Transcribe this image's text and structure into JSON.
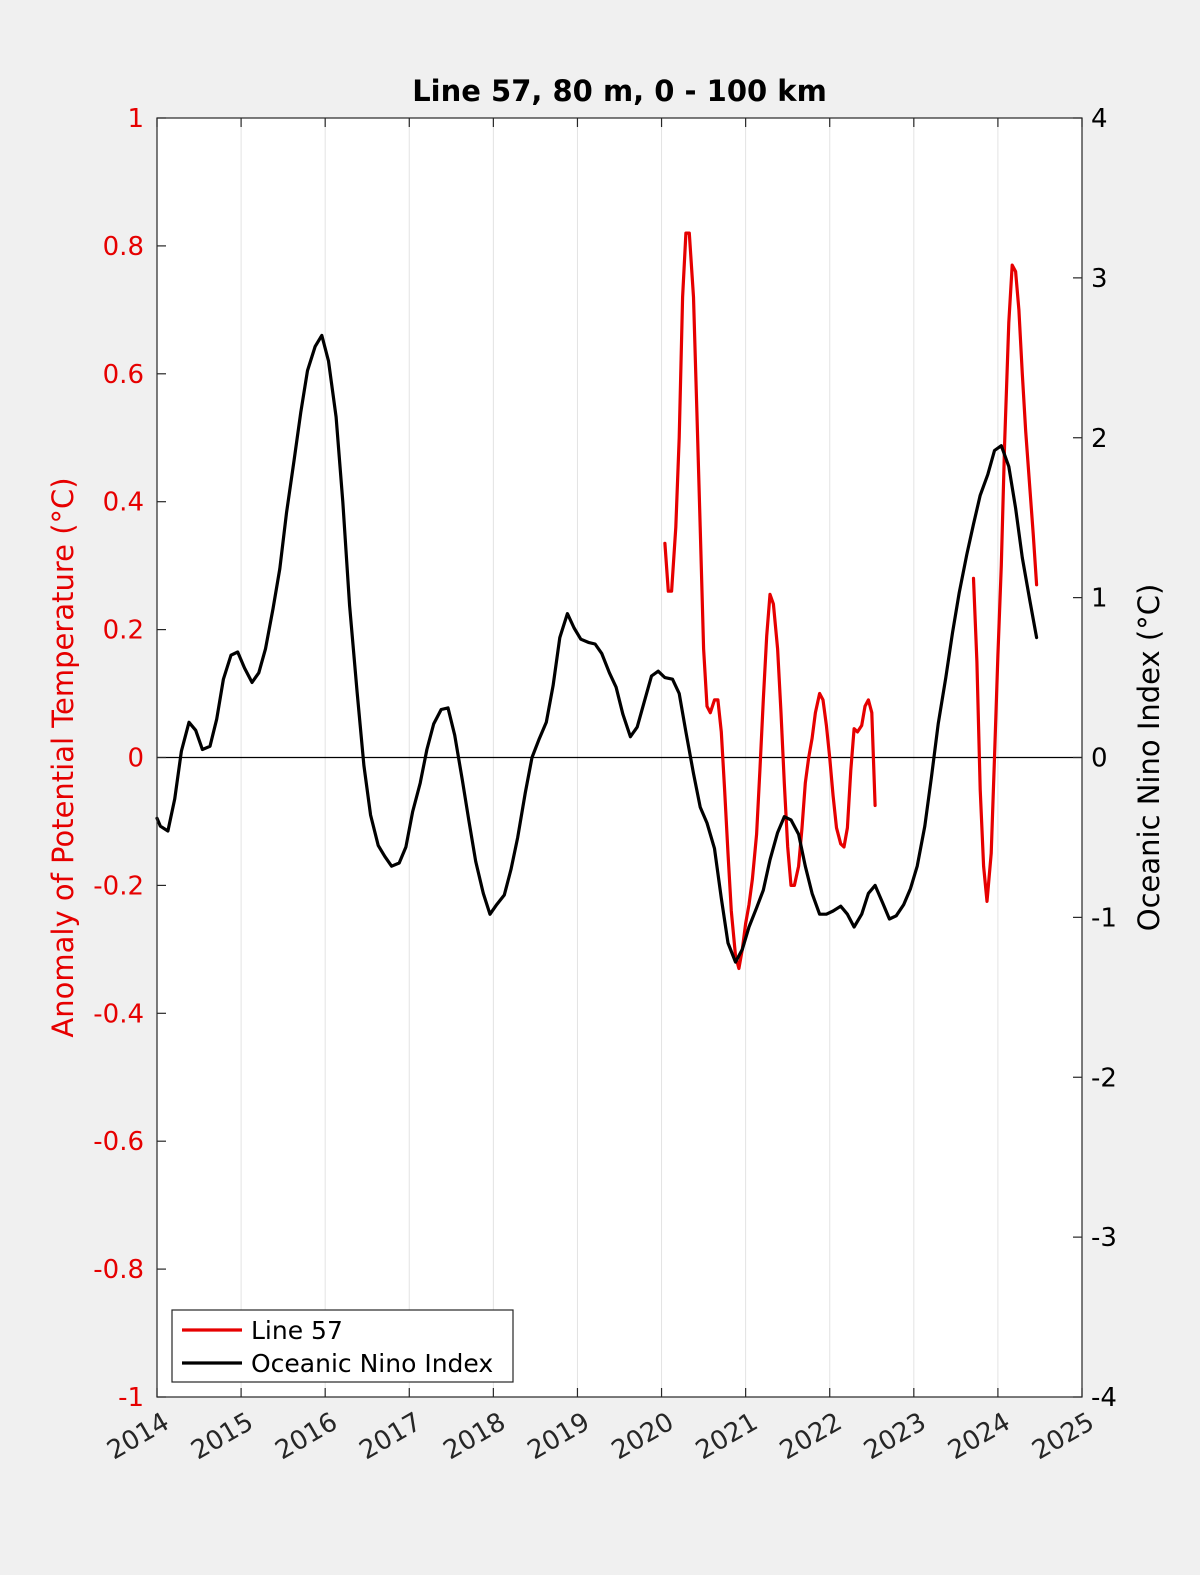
{
  "chart_data": {
    "type": "line",
    "title": "Line 57, 80 m, 0 - 100 km",
    "xlabel": "",
    "ylabel_left": "Anomaly of Potential Temperature (°C)",
    "ylabel_right": "Oceanic Nino Index (°C)",
    "xlim": [
      2014,
      2025
    ],
    "ylim_left": [
      -1,
      1
    ],
    "ylim_right": [
      -4,
      4
    ],
    "x_ticks": [
      "2014",
      "2015",
      "2016",
      "2017",
      "2018",
      "2019",
      "2020",
      "2021",
      "2022",
      "2023",
      "2024",
      "2025"
    ],
    "y_ticks_left": [
      "1",
      "0.8",
      "0.6",
      "0.4",
      "0.2",
      "0",
      "-0.2",
      "-0.4",
      "-0.6",
      "-0.8",
      "-1"
    ],
    "y_ticks_right": [
      "4",
      "3",
      "2",
      "1",
      "0",
      "-1",
      "-2",
      "-3",
      "-4"
    ],
    "grid": "vertical",
    "zero_line": true,
    "legend_position": "bottom-left",
    "colors": {
      "line57": "#e60000",
      "oni": "#000000",
      "left_axis": "#e60000",
      "right_axis": "#000000"
    },
    "series": [
      {
        "name": "Line 57",
        "axis": "left",
        "segments": [
          [
            [
              2020.04,
              0.335
            ],
            [
              2020.08,
              0.26
            ],
            [
              2020.12,
              0.26
            ],
            [
              2020.17,
              0.36
            ],
            [
              2020.21,
              0.5
            ],
            [
              2020.25,
              0.72
            ],
            [
              2020.29,
              0.82
            ],
            [
              2020.33,
              0.82
            ],
            [
              2020.38,
              0.72
            ],
            [
              2020.42,
              0.54
            ],
            [
              2020.46,
              0.36
            ],
            [
              2020.5,
              0.17
            ],
            [
              2020.54,
              0.08
            ],
            [
              2020.58,
              0.07
            ],
            [
              2020.63,
              0.09
            ],
            [
              2020.67,
              0.09
            ],
            [
              2020.71,
              0.04
            ],
            [
              2020.75,
              -0.05
            ],
            [
              2020.79,
              -0.15
            ],
            [
              2020.83,
              -0.24
            ],
            [
              2020.88,
              -0.31
            ],
            [
              2020.92,
              -0.33
            ],
            [
              2020.96,
              -0.3
            ],
            [
              2021.0,
              -0.26
            ],
            [
              2021.04,
              -0.23
            ],
            [
              2021.08,
              -0.19
            ],
            [
              2021.13,
              -0.12
            ],
            [
              2021.17,
              -0.02
            ],
            [
              2021.21,
              0.09
            ],
            [
              2021.25,
              0.19
            ],
            [
              2021.29,
              0.255
            ],
            [
              2021.33,
              0.24
            ],
            [
              2021.38,
              0.17
            ],
            [
              2021.42,
              0.07
            ],
            [
              2021.46,
              -0.04
            ],
            [
              2021.5,
              -0.14
            ],
            [
              2021.54,
              -0.2
            ],
            [
              2021.58,
              -0.2
            ],
            [
              2021.63,
              -0.17
            ],
            [
              2021.67,
              -0.11
            ],
            [
              2021.71,
              -0.04
            ],
            [
              2021.75,
              0.0
            ],
            [
              2021.79,
              0.03
            ],
            [
              2021.83,
              0.07
            ],
            [
              2021.88,
              0.1
            ],
            [
              2021.92,
              0.09
            ],
            [
              2021.96,
              0.05
            ],
            [
              2022.0,
              0.0
            ],
            [
              2022.04,
              -0.06
            ],
            [
              2022.08,
              -0.11
            ],
            [
              2022.13,
              -0.135
            ],
            [
              2022.17,
              -0.14
            ],
            [
              2022.21,
              -0.11
            ],
            [
              2022.25,
              -0.02
            ],
            [
              2022.29,
              0.045
            ],
            [
              2022.33,
              0.04
            ],
            [
              2022.38,
              0.05
            ],
            [
              2022.42,
              0.08
            ],
            [
              2022.46,
              0.09
            ],
            [
              2022.5,
              0.07
            ],
            [
              2022.54,
              -0.075
            ]
          ],
          [
            [
              2023.71,
              0.28
            ],
            [
              2023.75,
              0.15
            ],
            [
              2023.79,
              -0.05
            ],
            [
              2023.83,
              -0.17
            ],
            [
              2023.87,
              -0.225
            ],
            [
              2023.92,
              -0.15
            ],
            [
              2023.96,
              0.0
            ],
            [
              2024.0,
              0.16
            ],
            [
              2024.04,
              0.3
            ],
            [
              2024.08,
              0.49
            ],
            [
              2024.13,
              0.68
            ],
            [
              2024.17,
              0.77
            ],
            [
              2024.21,
              0.76
            ],
            [
              2024.25,
              0.7
            ],
            [
              2024.29,
              0.6
            ],
            [
              2024.33,
              0.51
            ],
            [
              2024.38,
              0.42
            ],
            [
              2024.42,
              0.35
            ],
            [
              2024.46,
              0.27
            ]
          ]
        ]
      },
      {
        "name": "Oceanic Nino Index",
        "axis": "right",
        "segments": [
          [
            [
              2014.0,
              -0.38
            ],
            [
              2014.04,
              -0.43
            ],
            [
              2014.13,
              -0.46
            ],
            [
              2014.21,
              -0.26
            ],
            [
              2014.29,
              0.04
            ],
            [
              2014.38,
              0.22
            ],
            [
              2014.46,
              0.17
            ],
            [
              2014.54,
              0.05
            ],
            [
              2014.63,
              0.07
            ],
            [
              2014.71,
              0.24
            ],
            [
              2014.79,
              0.49
            ],
            [
              2014.88,
              0.64
            ],
            [
              2014.96,
              0.66
            ],
            [
              2015.04,
              0.56
            ],
            [
              2015.13,
              0.47
            ],
            [
              2015.21,
              0.53
            ],
            [
              2015.29,
              0.68
            ],
            [
              2015.38,
              0.93
            ],
            [
              2015.46,
              1.18
            ],
            [
              2015.54,
              1.53
            ],
            [
              2015.63,
              1.86
            ],
            [
              2015.71,
              2.16
            ],
            [
              2015.79,
              2.42
            ],
            [
              2015.88,
              2.57
            ],
            [
              2015.96,
              2.64
            ],
            [
              2016.04,
              2.48
            ],
            [
              2016.13,
              2.13
            ],
            [
              2016.21,
              1.6
            ],
            [
              2016.29,
              0.95
            ],
            [
              2016.38,
              0.41
            ],
            [
              2016.46,
              -0.05
            ],
            [
              2016.54,
              -0.36
            ],
            [
              2016.63,
              -0.55
            ],
            [
              2016.71,
              -0.62
            ],
            [
              2016.79,
              -0.68
            ],
            [
              2016.88,
              -0.66
            ],
            [
              2016.96,
              -0.56
            ],
            [
              2017.04,
              -0.34
            ],
            [
              2017.13,
              -0.16
            ],
            [
              2017.21,
              0.05
            ],
            [
              2017.29,
              0.21
            ],
            [
              2017.38,
              0.3
            ],
            [
              2017.46,
              0.31
            ],
            [
              2017.54,
              0.14
            ],
            [
              2017.63,
              -0.14
            ],
            [
              2017.71,
              -0.4
            ],
            [
              2017.79,
              -0.65
            ],
            [
              2017.88,
              -0.85
            ],
            [
              2017.96,
              -0.98
            ],
            [
              2018.04,
              -0.92
            ],
            [
              2018.13,
              -0.86
            ],
            [
              2018.21,
              -0.7
            ],
            [
              2018.29,
              -0.5
            ],
            [
              2018.38,
              -0.22
            ],
            [
              2018.46,
              0.0
            ],
            [
              2018.54,
              0.11
            ],
            [
              2018.63,
              0.22
            ],
            [
              2018.71,
              0.45
            ],
            [
              2018.79,
              0.75
            ],
            [
              2018.88,
              0.9
            ],
            [
              2018.96,
              0.81
            ],
            [
              2019.04,
              0.74
            ],
            [
              2019.13,
              0.72
            ],
            [
              2019.21,
              0.71
            ],
            [
              2019.29,
              0.65
            ],
            [
              2019.38,
              0.53
            ],
            [
              2019.46,
              0.44
            ],
            [
              2019.54,
              0.27
            ],
            [
              2019.63,
              0.13
            ],
            [
              2019.71,
              0.19
            ],
            [
              2019.79,
              0.34
            ],
            [
              2019.88,
              0.51
            ],
            [
              2019.96,
              0.54
            ],
            [
              2020.04,
              0.5
            ],
            [
              2020.13,
              0.49
            ],
            [
              2020.21,
              0.4
            ],
            [
              2020.29,
              0.16
            ],
            [
              2020.38,
              -0.1
            ],
            [
              2020.46,
              -0.31
            ],
            [
              2020.54,
              -0.41
            ],
            [
              2020.63,
              -0.57
            ],
            [
              2020.71,
              -0.88
            ],
            [
              2020.79,
              -1.16
            ],
            [
              2020.88,
              -1.28
            ],
            [
              2020.96,
              -1.2
            ],
            [
              2021.04,
              -1.06
            ],
            [
              2021.13,
              -0.94
            ],
            [
              2021.21,
              -0.83
            ],
            [
              2021.29,
              -0.64
            ],
            [
              2021.38,
              -0.47
            ],
            [
              2021.46,
              -0.37
            ],
            [
              2021.54,
              -0.39
            ],
            [
              2021.63,
              -0.48
            ],
            [
              2021.71,
              -0.68
            ],
            [
              2021.79,
              -0.85
            ],
            [
              2021.88,
              -0.98
            ],
            [
              2021.96,
              -0.98
            ],
            [
              2022.04,
              -0.96
            ],
            [
              2022.13,
              -0.93
            ],
            [
              2022.21,
              -0.98
            ],
            [
              2022.29,
              -1.06
            ],
            [
              2022.38,
              -0.98
            ],
            [
              2022.46,
              -0.85
            ],
            [
              2022.54,
              -0.8
            ],
            [
              2022.63,
              -0.91
            ],
            [
              2022.71,
              -1.01
            ],
            [
              2022.79,
              -0.99
            ],
            [
              2022.88,
              -0.92
            ],
            [
              2022.96,
              -0.82
            ],
            [
              2023.04,
              -0.68
            ],
            [
              2023.13,
              -0.43
            ],
            [
              2023.21,
              -0.12
            ],
            [
              2023.29,
              0.21
            ],
            [
              2023.38,
              0.5
            ],
            [
              2023.46,
              0.78
            ],
            [
              2023.54,
              1.03
            ],
            [
              2023.63,
              1.27
            ],
            [
              2023.71,
              1.46
            ],
            [
              2023.79,
              1.64
            ],
            [
              2023.88,
              1.77
            ],
            [
              2023.96,
              1.92
            ],
            [
              2024.04,
              1.95
            ],
            [
              2024.13,
              1.82
            ],
            [
              2024.21,
              1.56
            ],
            [
              2024.29,
              1.25
            ],
            [
              2024.38,
              0.98
            ],
            [
              2024.46,
              0.75
            ]
          ]
        ]
      }
    ]
  }
}
